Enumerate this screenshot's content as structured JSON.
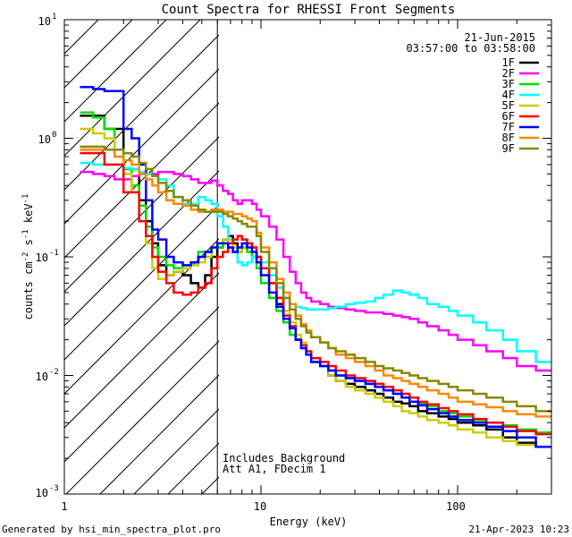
{
  "chart_data": {
    "type": "line",
    "title": "Count Spectra for RHESSI Front Segments",
    "xlabel": "Energy (keV)",
    "ylabel": {
      "pre": "counts cm",
      "sup1": "-2",
      "mid": " s",
      "sup2": "-1",
      "post": " keV",
      "sup3": "-1"
    },
    "xscale": "log",
    "yscale": "log",
    "xlim": [
      1,
      300
    ],
    "ylim": [
      0.001,
      10
    ],
    "x_ticks": [
      "1",
      "10",
      "100"
    ],
    "y_ticks": [
      {
        "base": "10",
        "exp": "-3",
        "v": 0.001
      },
      {
        "base": "10",
        "exp": "-2",
        "v": 0.01
      },
      {
        "base": "10",
        "exp": "-1",
        "v": 0.1
      },
      {
        "base": "10",
        "exp": "0",
        "v": 1
      },
      {
        "base": "10",
        "exp": "1",
        "v": 10
      }
    ],
    "attenuator_edge_kev": 6,
    "date": "21-Jun-2015",
    "time_range": "03:57:00 to 03:58:00",
    "annotations": [
      "Includes Background",
      "Att A1, FDecim 1"
    ],
    "energy_grid": [
      1.2,
      1.4,
      1.6,
      1.8,
      2.0,
      2.2,
      2.4,
      2.6,
      2.8,
      3.0,
      3.3,
      3.6,
      4.0,
      4.4,
      4.8,
      5.2,
      5.6,
      6.0,
      6.4,
      6.8,
      7.2,
      7.6,
      8.0,
      8.5,
      9.0,
      9.5,
      10,
      11,
      12,
      13,
      14,
      15,
      16,
      17,
      18,
      20,
      22,
      24,
      27,
      30,
      34,
      38,
      42,
      47,
      52,
      57,
      63,
      70,
      80,
      90,
      100,
      120,
      140,
      170,
      200,
      250,
      300
    ],
    "series": [
      {
        "name": "1F",
        "color": "#000000",
        "values": [
          1.55,
          1.55,
          1.2,
          1.2,
          0.55,
          0.55,
          0.3,
          0.2,
          0.13,
          0.085,
          0.07,
          0.075,
          0.07,
          0.06,
          0.055,
          0.07,
          0.1,
          0.12,
          0.14,
          0.15,
          0.13,
          0.11,
          0.12,
          0.13,
          0.12,
          0.1,
          0.08,
          0.06,
          0.04,
          0.03,
          0.025,
          0.02,
          0.018,
          0.015,
          0.013,
          0.012,
          0.01,
          0.009,
          0.0085,
          0.008,
          0.0075,
          0.007,
          0.0065,
          0.006,
          0.0058,
          0.0055,
          0.005,
          0.0048,
          0.0045,
          0.0043,
          0.004,
          0.0038,
          0.0035,
          0.003,
          0.0027,
          0.0025
        ]
      },
      {
        "name": "2F",
        "color": "#ff00ff",
        "values": [
          0.52,
          0.5,
          0.48,
          0.45,
          0.45,
          0.48,
          0.5,
          0.5,
          0.5,
          0.52,
          0.52,
          0.5,
          0.48,
          0.45,
          0.42,
          0.42,
          0.44,
          0.4,
          0.36,
          0.34,
          0.3,
          0.28,
          0.3,
          0.3,
          0.28,
          0.25,
          0.22,
          0.18,
          0.14,
          0.1,
          0.075,
          0.06,
          0.05,
          0.045,
          0.042,
          0.04,
          0.038,
          0.037,
          0.036,
          0.035,
          0.034,
          0.034,
          0.033,
          0.032,
          0.031,
          0.03,
          0.028,
          0.026,
          0.024,
          0.022,
          0.02,
          0.018,
          0.016,
          0.014,
          0.012,
          0.011
        ]
      },
      {
        "name": "3F",
        "color": "#00dd00",
        "values": [
          1.65,
          1.5,
          1.2,
          0.8,
          0.55,
          0.4,
          0.27,
          0.18,
          0.12,
          0.1,
          0.085,
          0.08,
          0.085,
          0.09,
          0.11,
          0.11,
          0.12,
          0.12,
          0.13,
          0.12,
          0.11,
          0.11,
          0.12,
          0.11,
          0.1,
          0.08,
          0.06,
          0.045,
          0.035,
          0.028,
          0.022,
          0.02,
          0.017,
          0.015,
          0.013,
          0.012,
          0.011,
          0.01,
          0.0095,
          0.009,
          0.0085,
          0.008,
          0.0075,
          0.007,
          0.0065,
          0.006,
          0.0058,
          0.0055,
          0.005,
          0.0048,
          0.0045,
          0.0042,
          0.004,
          0.0038,
          0.0035,
          0.0033
        ]
      },
      {
        "name": "4F",
        "color": "#00ffff",
        "values": [
          0.62,
          0.6,
          0.6,
          0.6,
          0.56,
          0.55,
          0.52,
          0.5,
          0.48,
          0.45,
          0.4,
          0.32,
          0.28,
          0.28,
          0.32,
          0.3,
          0.28,
          0.22,
          0.18,
          0.14,
          0.11,
          0.09,
          0.085,
          0.09,
          0.1,
          0.1,
          0.09,
          0.07,
          0.055,
          0.045,
          0.04,
          0.038,
          0.037,
          0.036,
          0.036,
          0.036,
          0.037,
          0.038,
          0.04,
          0.041,
          0.042,
          0.045,
          0.048,
          0.052,
          0.05,
          0.048,
          0.045,
          0.04,
          0.038,
          0.035,
          0.032,
          0.028,
          0.024,
          0.02,
          0.016,
          0.013
        ]
      },
      {
        "name": "5F",
        "color": "#cccc00",
        "values": [
          1.2,
          1.1,
          1.0,
          0.7,
          0.5,
          0.35,
          0.2,
          0.13,
          0.08,
          0.065,
          0.07,
          0.075,
          0.08,
          0.085,
          0.09,
          0.1,
          0.12,
          0.13,
          0.14,
          0.13,
          0.12,
          0.11,
          0.12,
          0.13,
          0.12,
          0.1,
          0.08,
          0.06,
          0.045,
          0.035,
          0.028,
          0.022,
          0.019,
          0.016,
          0.014,
          0.012,
          0.01,
          0.009,
          0.008,
          0.0075,
          0.007,
          0.0065,
          0.006,
          0.0055,
          0.005,
          0.0048,
          0.0045,
          0.0042,
          0.004,
          0.0038,
          0.0035,
          0.0033,
          0.003,
          0.0028,
          0.0026,
          0.0025
        ]
      },
      {
        "name": "6F",
        "color": "#ff0000",
        "values": [
          0.75,
          0.75,
          0.6,
          0.6,
          0.35,
          0.35,
          0.2,
          0.15,
          0.1,
          0.075,
          0.06,
          0.05,
          0.048,
          0.05,
          0.055,
          0.06,
          0.08,
          0.1,
          0.11,
          0.13,
          0.14,
          0.15,
          0.14,
          0.13,
          0.12,
          0.1,
          0.08,
          0.06,
          0.045,
          0.032,
          0.026,
          0.02,
          0.018,
          0.016,
          0.014,
          0.013,
          0.012,
          0.011,
          0.01,
          0.0095,
          0.009,
          0.0085,
          0.008,
          0.0075,
          0.007,
          0.0065,
          0.006,
          0.0057,
          0.0053,
          0.005,
          0.0047,
          0.0043,
          0.004,
          0.0037,
          0.0034,
          0.0032
        ]
      },
      {
        "name": "7F",
        "color": "#0000ff",
        "values": [
          2.7,
          2.6,
          2.5,
          2.5,
          1.2,
          1.0,
          0.6,
          0.3,
          0.17,
          0.14,
          0.1,
          0.09,
          0.085,
          0.09,
          0.1,
          0.11,
          0.12,
          0.13,
          0.13,
          0.12,
          0.11,
          0.12,
          0.13,
          0.12,
          0.11,
          0.09,
          0.07,
          0.05,
          0.038,
          0.03,
          0.025,
          0.02,
          0.017,
          0.015,
          0.013,
          0.012,
          0.011,
          0.01,
          0.0095,
          0.009,
          0.0085,
          0.008,
          0.0075,
          0.007,
          0.0065,
          0.006,
          0.0056,
          0.0052,
          0.0048,
          0.0045,
          0.0042,
          0.004,
          0.0037,
          0.0034,
          0.003,
          0.0025
        ]
      },
      {
        "name": "8F",
        "color": "#ff8800",
        "values": [
          0.8,
          0.8,
          0.8,
          0.7,
          0.65,
          0.6,
          0.5,
          0.45,
          0.4,
          0.35,
          0.3,
          0.28,
          0.27,
          0.25,
          0.24,
          0.24,
          0.25,
          0.25,
          0.24,
          0.24,
          0.23,
          0.23,
          0.22,
          0.21,
          0.2,
          0.16,
          0.12,
          0.09,
          0.065,
          0.05,
          0.04,
          0.032,
          0.027,
          0.024,
          0.021,
          0.019,
          0.017,
          0.015,
          0.014,
          0.013,
          0.012,
          0.011,
          0.01,
          0.0095,
          0.009,
          0.0085,
          0.008,
          0.0075,
          0.007,
          0.0065,
          0.006,
          0.0057,
          0.0054,
          0.005,
          0.0047,
          0.0045
        ]
      },
      {
        "name": "9F",
        "color": "#888800",
        "values": [
          0.85,
          0.85,
          0.8,
          0.8,
          0.75,
          0.7,
          0.62,
          0.55,
          0.48,
          0.42,
          0.36,
          0.32,
          0.3,
          0.27,
          0.25,
          0.24,
          0.24,
          0.24,
          0.23,
          0.22,
          0.21,
          0.2,
          0.19,
          0.18,
          0.18,
          0.15,
          0.11,
          0.08,
          0.06,
          0.045,
          0.036,
          0.03,
          0.026,
          0.023,
          0.021,
          0.019,
          0.017,
          0.016,
          0.015,
          0.014,
          0.013,
          0.012,
          0.0115,
          0.011,
          0.0105,
          0.01,
          0.0095,
          0.009,
          0.0085,
          0.008,
          0.0075,
          0.007,
          0.0065,
          0.006,
          0.0055,
          0.005
        ]
      }
    ]
  },
  "footer": {
    "left": "Generated by hsi_min_spectra_plot.pro",
    "right": "21-Apr-2023 10:23"
  }
}
